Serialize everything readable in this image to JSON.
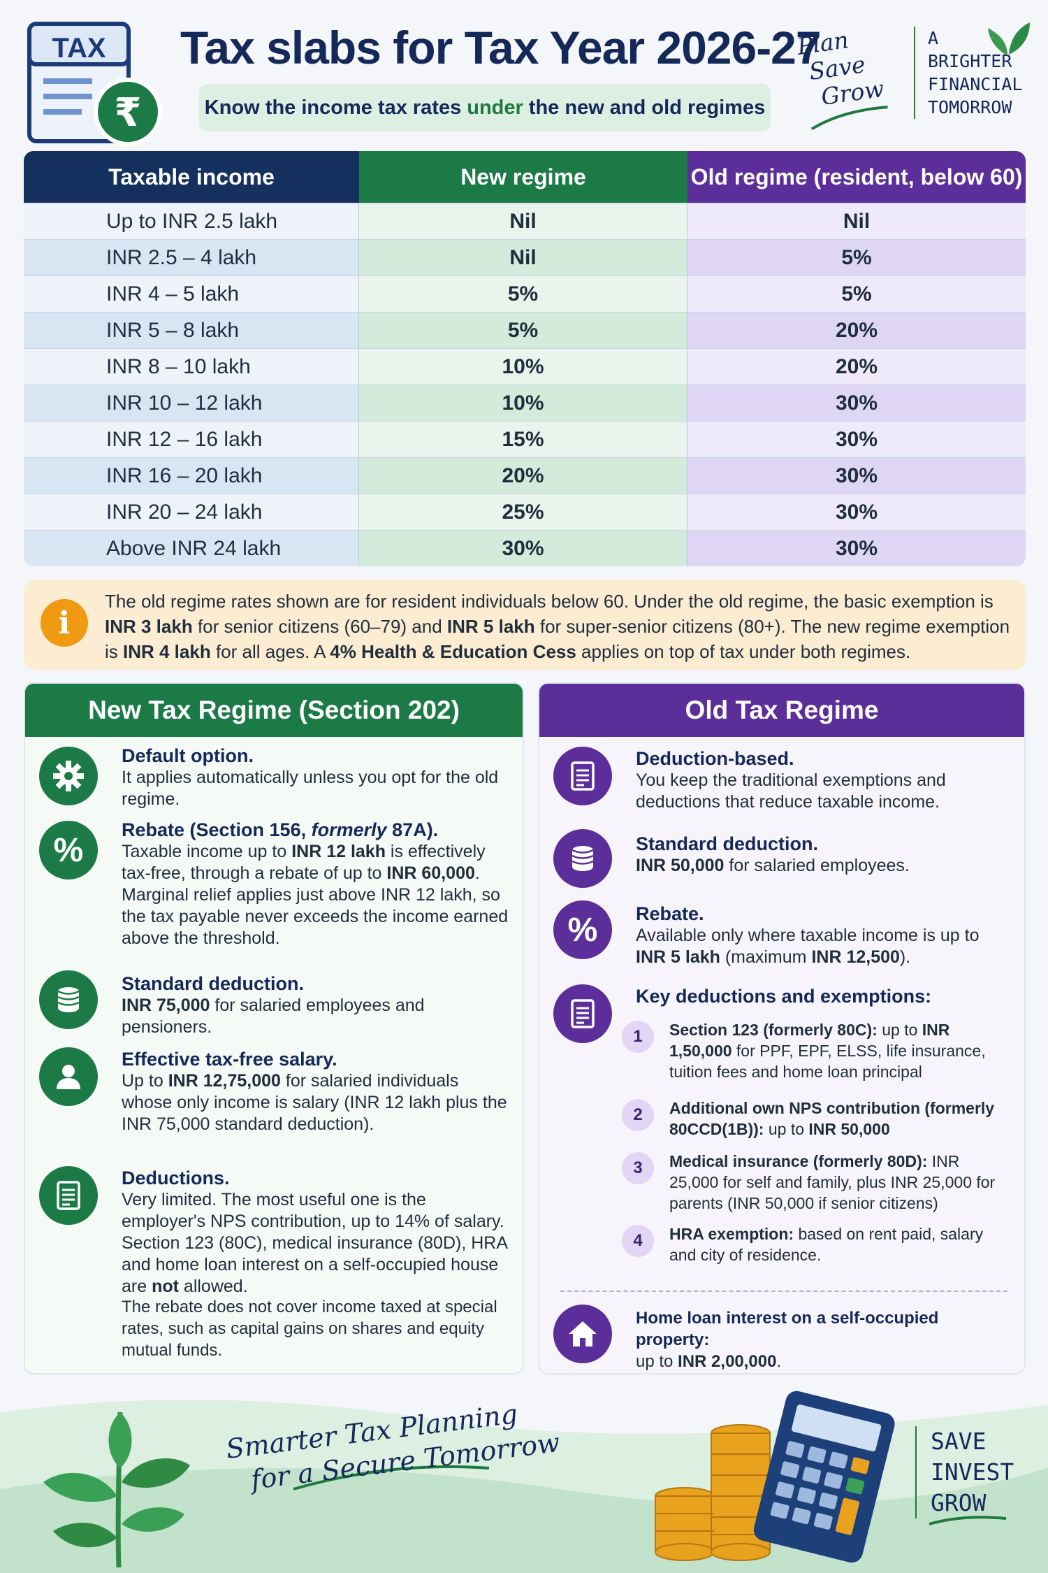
{
  "header": {
    "tax_icon_label": "TAX",
    "rupee_symbol": "₹",
    "title": "Tax slabs for Tax Year 2026-27",
    "subtitle_pre": "Know the income tax rates",
    "subtitle_mid": "under",
    "subtitle_post": "the new and old regimes",
    "plan_lines": [
      "Plan",
      "Save",
      "Grow"
    ],
    "brighter_lines": [
      "A",
      "BRIGHTER",
      "FINANCIAL",
      "TOMORROW"
    ]
  },
  "table": {
    "headers": [
      "Taxable income",
      "New regime",
      "Old regime (resident, below 60)"
    ],
    "rows": [
      [
        "Up to INR 2.5 lakh",
        "Nil",
        "Nil"
      ],
      [
        "INR 2.5 – 4 lakh",
        "Nil",
        "5%"
      ],
      [
        "INR 4 – 5 lakh",
        "5%",
        "5%"
      ],
      [
        "INR 5 – 8 lakh",
        "5%",
        "20%"
      ],
      [
        "INR 8 – 10 lakh",
        "10%",
        "20%"
      ],
      [
        "INR 10 – 12 lakh",
        "10%",
        "30%"
      ],
      [
        "INR 12 – 16 lakh",
        "15%",
        "30%"
      ],
      [
        "INR 16 – 20 lakh",
        "20%",
        "30%"
      ],
      [
        "INR 20 – 24 lakh",
        "25%",
        "30%"
      ],
      [
        "Above INR 24 lakh",
        "30%",
        "30%"
      ]
    ]
  },
  "note": {
    "icon": "i",
    "t1": "The old regime rates shown are for resident individuals below 60. Under the old regime, the basic exemption is ",
    "b1": "INR 3 lakh",
    "t2": " for senior citizens (60–79) and ",
    "b2": "INR 5 lakh",
    "t3": " for super-senior citizens (80+). The new regime exemption is ",
    "b3": "INR 4 lakh",
    "t4": " for all ages. A ",
    "b4": "4% Health & Education Cess",
    "t5": " applies on top of tax under both regimes."
  },
  "new_regime": {
    "heading": "New Tax Regime (Section 202)",
    "default_title": "Default option.",
    "default_text": "It applies automatically unless you opt for the old regime.",
    "rebate_title_pre": "Rebate (Section 156, ",
    "rebate_title_em": "formerly",
    "rebate_title_post": " 87A).",
    "rebate_t1": "Taxable income up to ",
    "rebate_b1": "INR 12 lakh",
    "rebate_t2": " is effectively tax-free, through a rebate of up to ",
    "rebate_b2": "INR 60,000",
    "rebate_t3": ". Marginal relief applies just above INR 12 lakh, so the tax payable never exceeds the income earned above the threshold.",
    "std_title": "Standard deduction.",
    "std_b": "INR 75,000",
    "std_t": " for salaried employees and pensioners.",
    "eff_title": "Effective tax-free salary.",
    "eff_t1": "Up to ",
    "eff_b": "INR 12,75,000",
    "eff_t2": " for salaried individuals whose only income is salary (INR 12 lakh plus the INR 75,000 standard deduction).",
    "ded_title": "Deductions.",
    "ded_t1": "Very limited. The most useful one is the employer's NPS contribution, up to 14% of salary. Section 123 (80C), medical insurance (80D), HRA and home loan interest on a self-occupied house are ",
    "ded_b": "not",
    "ded_t2": " allowed.",
    "footnote": "The rebate does not cover income taxed at special rates, such as capital gains on shares and equity mutual funds."
  },
  "old_regime": {
    "heading": "Old Tax Regime",
    "db_title": "Deduction-based.",
    "db_text": "You keep the traditional exemptions and deductions that reduce taxable income.",
    "std_title": "Standard deduction.",
    "std_b": "INR 50,000",
    "std_t": " for salaried employees.",
    "reb_title": "Rebate.",
    "reb_t1": "Available only where taxable income is up to ",
    "reb_b1": "INR 5 lakh",
    "reb_t2": " (maximum ",
    "reb_b2": "INR 12,500",
    "reb_t3": ").",
    "key_title": "Key deductions and exemptions:",
    "k1_n": "1",
    "k1_b": "Section 123 (formerly 80C):",
    "k1_t1": " up to ",
    "k1_b2": "INR 1,50,000",
    "k1_t2": " for PPF, EPF, ELSS, life insurance, tuition fees and home loan principal",
    "k2_n": "2",
    "k2_b": "Additional own NPS contribution (formerly 80CCD(1B)):",
    "k2_t1": " up to ",
    "k2_b2": "INR 50,000",
    "k3_n": "3",
    "k3_b": "Medical insurance (formerly 80D):",
    "k3_t": " INR 25,000 for self and family, plus INR 25,000 for parents (INR 50,000 if senior citizens)",
    "k4_n": "4",
    "k4_b": "HRA exemption:",
    "k4_t": " based on rent paid, salary and city of residence.",
    "home_b": "Home loan interest on a self-occupied property:",
    "home_t1": "up to ",
    "home_b2": "INR 2,00,000",
    "home_t2": "."
  },
  "footer": {
    "slogan_1": "Smarter Tax Planning",
    "slogan_2": "for a Secure Tomorrow",
    "sig_lines": [
      "SAVE",
      "INVEST",
      "GROW"
    ]
  },
  "colors": {
    "navy": "#14285a",
    "green": "#1b7a46",
    "purple": "#5b2e9a",
    "amber": "#f09a12"
  }
}
